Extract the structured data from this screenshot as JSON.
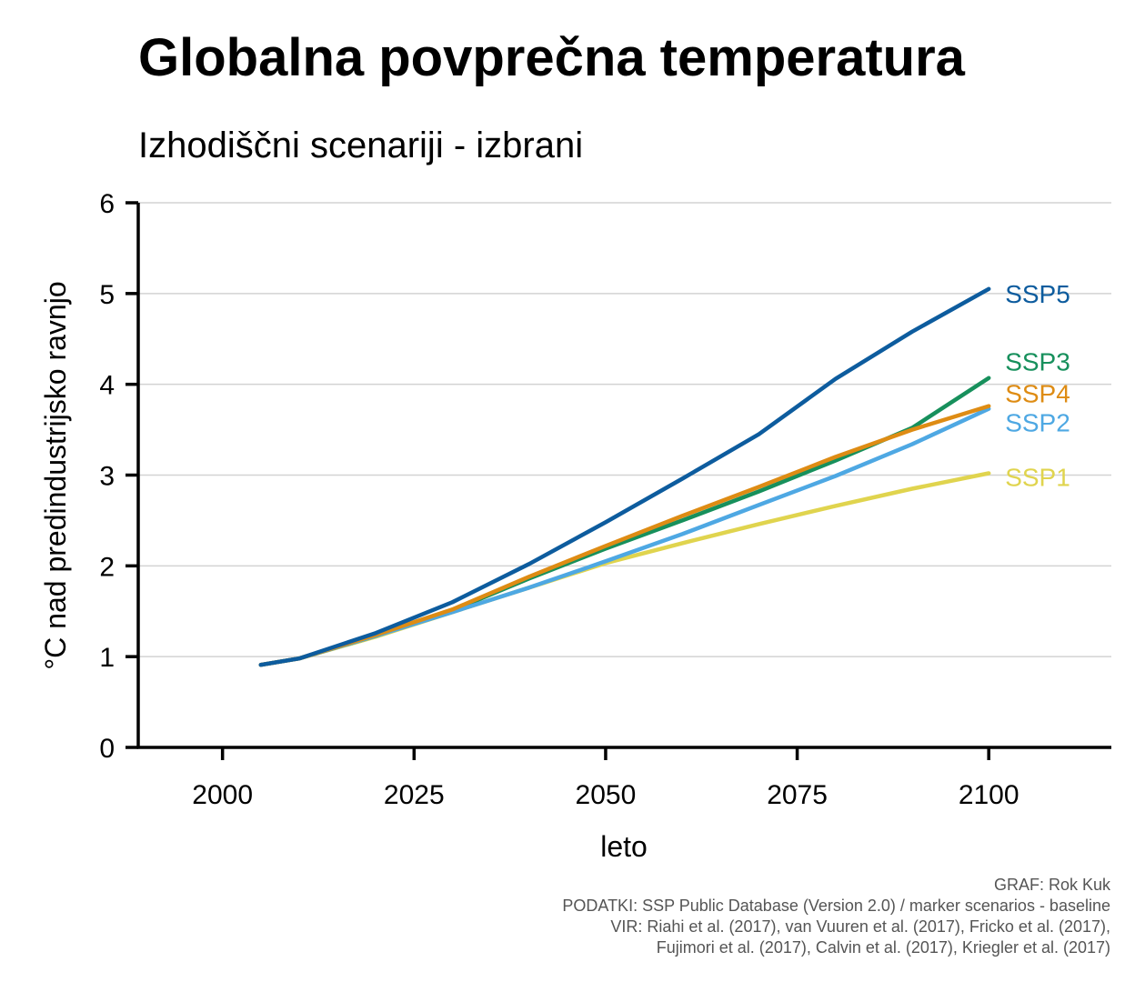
{
  "chart_data": {
    "type": "line",
    "title": "Globalna povprečna temperatura",
    "subtitle": "Izhodiščni scenariji - izbrani",
    "xlabel": "leto",
    "ylabel": "°C nad predindustrijsko ravnjo",
    "xlim": [
      1989,
      2116
    ],
    "ylim": [
      0,
      6
    ],
    "xticks": [
      2000,
      2025,
      2050,
      2075,
      2100
    ],
    "yticks": [
      0,
      1,
      2,
      3,
      4,
      5,
      6
    ],
    "grid": "horizontal",
    "x": [
      2005,
      2010,
      2020,
      2030,
      2040,
      2050,
      2060,
      2070,
      2080,
      2090,
      2100
    ],
    "series": [
      {
        "name": "SSP1",
        "color": "#e0d44e",
        "values": [
          0.91,
          0.98,
          1.22,
          1.49,
          1.76,
          2.03,
          2.25,
          2.46,
          2.66,
          2.85,
          3.02
        ]
      },
      {
        "name": "SSP3",
        "color": "#17905c",
        "values": [
          0.91,
          0.98,
          1.23,
          1.51,
          1.86,
          2.19,
          2.5,
          2.82,
          3.16,
          3.52,
          4.07
        ]
      },
      {
        "name": "SSP2",
        "color": "#4ea8e3",
        "values": [
          0.91,
          0.98,
          1.23,
          1.49,
          1.76,
          2.05,
          2.35,
          2.67,
          2.99,
          3.34,
          3.73
        ]
      },
      {
        "name": "SSP4",
        "color": "#de8c14",
        "values": [
          0.91,
          0.98,
          1.24,
          1.52,
          1.88,
          2.22,
          2.55,
          2.87,
          3.2,
          3.5,
          3.76
        ]
      },
      {
        "name": "SSP5",
        "color": "#0d5c9e",
        "values": [
          0.91,
          0.98,
          1.26,
          1.6,
          2.02,
          2.48,
          2.96,
          3.45,
          4.06,
          4.58,
          5.05
        ]
      }
    ],
    "labels": [
      {
        "text": "SSP5",
        "color": "#0d5c9e",
        "y": 5.0
      },
      {
        "text": "SSP3",
        "color": "#17905c",
        "y": 4.25
      },
      {
        "text": "SSP4",
        "color": "#de8c14",
        "y": 3.9
      },
      {
        "text": "SSP2",
        "color": "#4ea8e3",
        "y": 3.58
      },
      {
        "text": "SSP1",
        "color": "#e0d44e",
        "y": 2.98
      }
    ]
  },
  "credits": {
    "line1": "GRAF: Rok Kuk",
    "line2": "PODATKI: SSP Public Database (Version 2.0) / marker scenarios - baseline",
    "line3": "VIR: Riahi et al. (2017), van Vuuren et al. (2017), Fricko et al. (2017),",
    "line4": "Fujimori et al. (2017), Calvin et al. (2017), Kriegler et al. (2017)"
  }
}
